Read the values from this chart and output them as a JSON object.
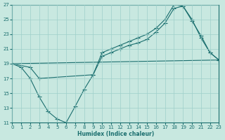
{
  "xlabel": "Humidex (Indice chaleur)",
  "xlim": [
    0,
    23
  ],
  "ylim": [
    11,
    27
  ],
  "xticks": [
    0,
    1,
    2,
    3,
    4,
    5,
    6,
    7,
    8,
    9,
    10,
    11,
    12,
    13,
    14,
    15,
    16,
    17,
    18,
    19,
    20,
    21,
    22,
    23
  ],
  "yticks": [
    11,
    13,
    15,
    17,
    19,
    21,
    23,
    25,
    27
  ],
  "bg_color": "#c8e8e0",
  "grid_color": "#9ecfca",
  "line_color": "#1a6e6e",
  "line1_x": [
    0,
    1,
    2,
    3,
    4,
    5,
    6,
    7,
    8,
    9,
    10,
    11,
    12,
    13,
    14,
    15,
    16,
    17,
    18,
    19,
    20,
    21,
    22,
    23
  ],
  "line1_y": [
    19,
    18.5,
    17.0,
    14.5,
    12.5,
    11.5,
    11.0,
    13.2,
    15.5,
    17.5,
    20.5,
    21.0,
    21.5,
    22.0,
    22.5,
    23.0,
    23.8,
    25.0,
    27.0,
    26.8,
    25.0,
    22.5,
    20.5,
    19.5
  ],
  "line2_x": [
    0,
    2,
    3,
    9,
    10,
    11,
    12,
    13,
    14,
    15,
    16,
    17,
    18,
    19,
    20,
    21,
    22,
    23
  ],
  "line2_y": [
    19,
    18.5,
    17.0,
    17.5,
    20.0,
    20.5,
    21.0,
    21.5,
    21.8,
    22.3,
    23.3,
    24.5,
    26.5,
    26.8,
    24.8,
    22.8,
    20.5,
    19.5
  ],
  "line3_x": [
    0,
    23
  ],
  "line3_y": [
    19.0,
    19.5
  ]
}
